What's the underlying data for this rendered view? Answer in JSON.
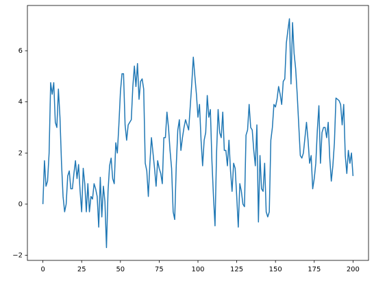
{
  "chart_data": {
    "type": "line",
    "color": "#1f77b4",
    "x": [
      0,
      1,
      2,
      3,
      4,
      5,
      6,
      7,
      8,
      9,
      10,
      11,
      12,
      13,
      14,
      15,
      16,
      17,
      18,
      19,
      20,
      21,
      22,
      23,
      24,
      25,
      26,
      27,
      28,
      29,
      30,
      31,
      32,
      33,
      34,
      35,
      36,
      37,
      38,
      39,
      40,
      41,
      42,
      43,
      44,
      45,
      46,
      47,
      48,
      49,
      50,
      51,
      52,
      53,
      54,
      55,
      56,
      57,
      58,
      59,
      60,
      61,
      62,
      63,
      64,
      65,
      66,
      67,
      68,
      69,
      70,
      71,
      72,
      73,
      74,
      75,
      76,
      77,
      78,
      79,
      80,
      81,
      82,
      83,
      84,
      85,
      86,
      87,
      88,
      89,
      90,
      91,
      92,
      93,
      94,
      95,
      96,
      97,
      98,
      99,
      100,
      101,
      102,
      103,
      104,
      105,
      106,
      107,
      108,
      109,
      110,
      111,
      112,
      113,
      114,
      115,
      116,
      117,
      118,
      119,
      120,
      121,
      122,
      123,
      124,
      125,
      126,
      127,
      128,
      129,
      130,
      131,
      132,
      133,
      134,
      135,
      136,
      137,
      138,
      139,
      140,
      141,
      142,
      143,
      144,
      145,
      146,
      147,
      148,
      149,
      150,
      151,
      152,
      153,
      154,
      155,
      156,
      157,
      158,
      159,
      160,
      161,
      162,
      163,
      164,
      165,
      166,
      167,
      168,
      169,
      170,
      171,
      172,
      173,
      174,
      175,
      176,
      177,
      178,
      179,
      180,
      181,
      182,
      183,
      184,
      185,
      186,
      187,
      188,
      189,
      190,
      191,
      192,
      193,
      194,
      195,
      196,
      197,
      198,
      199,
      200
    ],
    "values": [
      0,
      1.7,
      0.7,
      0.9,
      2.0,
      4.75,
      4.3,
      4.75,
      3.2,
      3.0,
      4.5,
      3.4,
      1.6,
      0.3,
      -0.3,
      0.0,
      1.1,
      1.3,
      0.6,
      0.6,
      1.2,
      1.7,
      1.0,
      1.55,
      0.5,
      -0.3,
      1.4,
      0.8,
      -0.3,
      0.8,
      -0.3,
      0.3,
      0.2,
      0.8,
      0.6,
      0.3,
      -0.9,
      1.05,
      -0.5,
      0.7,
      0.1,
      -1.7,
      0.5,
      1.5,
      1.8,
      1.0,
      0.8,
      2.4,
      2.0,
      3.1,
      4.4,
      5.1,
      5.1,
      3.1,
      2.5,
      3.1,
      3.2,
      3.3,
      4.6,
      5.4,
      4.6,
      5.5,
      4.1,
      4.8,
      4.9,
      4.5,
      1.6,
      1.3,
      0.3,
      1.6,
      2.6,
      2.0,
      1.4,
      0.7,
      1.7,
      1.4,
      1.2,
      0.8,
      2.6,
      2.6,
      3.6,
      3.0,
      2.1,
      1.4,
      -0.3,
      -0.6,
      1.5,
      2.9,
      3.3,
      2.1,
      2.6,
      3.0,
      3.3,
      3.1,
      2.9,
      3.8,
      4.7,
      5.75,
      5.0,
      4.3,
      3.4,
      3.9,
      2.5,
      1.5,
      2.5,
      2.8,
      4.25,
      3.4,
      3.7,
      1.7,
      0.3,
      -0.85,
      2.0,
      3.7,
      2.8,
      2.6,
      3.6,
      2.1,
      2.1,
      1.5,
      2.5,
      1.3,
      0.5,
      1.6,
      1.4,
      0.3,
      -0.9,
      0.8,
      0.5,
      0.0,
      -0.1,
      2.7,
      2.9,
      3.9,
      3.0,
      2.9,
      2.1,
      1.5,
      3.1,
      -0.7,
      1.9,
      0.6,
      0.5,
      1.6,
      -0.3,
      -0.5,
      -0.3,
      2.5,
      3.0,
      3.9,
      3.8,
      4.1,
      4.6,
      4.3,
      3.9,
      4.8,
      4.9,
      6.3,
      6.8,
      7.25,
      4.7,
      7.1,
      5.9,
      5.3,
      4.3,
      3.1,
      1.9,
      1.8,
      2.0,
      2.6,
      3.2,
      2.5,
      1.6,
      1.9,
      0.6,
      1.0,
      1.6,
      2.9,
      3.85,
      1.6,
      2.8,
      3.0,
      3.0,
      2.6,
      3.2,
      1.8,
      0.9,
      1.5,
      2.4,
      4.15,
      4.1,
      4.05,
      3.9,
      3.1,
      3.9,
      1.9,
      1.2,
      2.1,
      1.6,
      2.0,
      1.1
    ],
    "xlim": [
      -10,
      210
    ],
    "ylim": [
      -2.2,
      7.77
    ],
    "xticks": [
      0,
      25,
      50,
      75,
      100,
      125,
      150,
      175,
      200
    ],
    "yticks": [
      {
        "value": -2,
        "label": "−2"
      },
      0,
      2,
      4,
      6
    ]
  }
}
